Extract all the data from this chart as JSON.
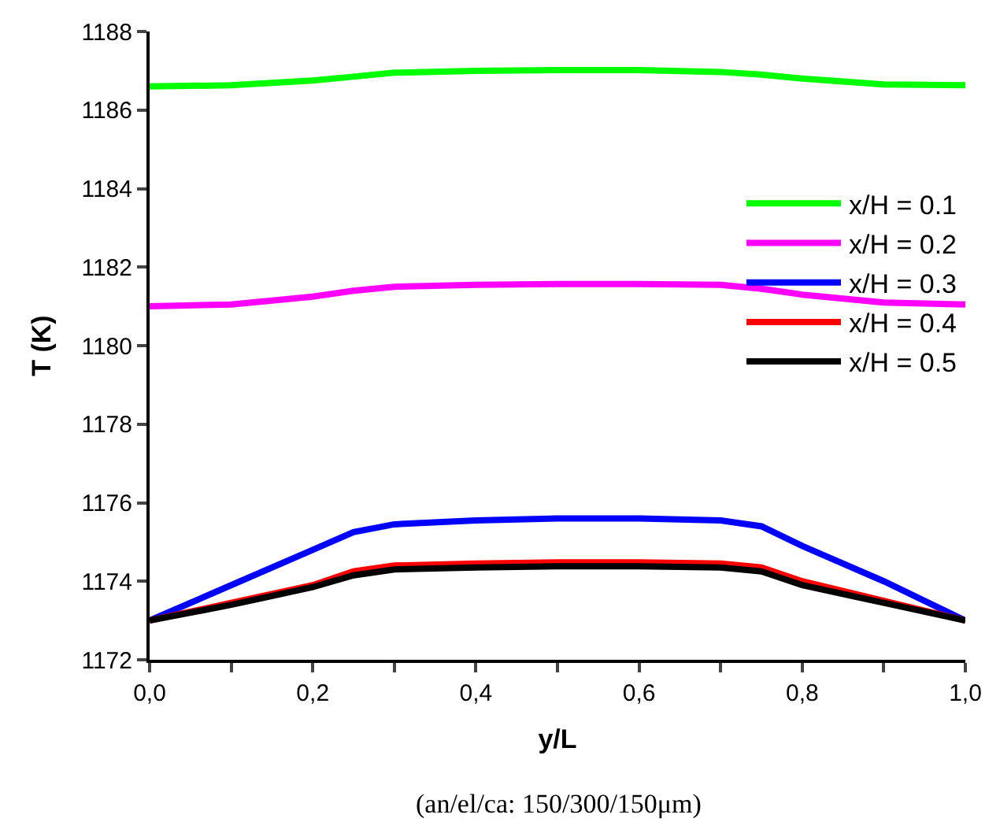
{
  "chart_data": {
    "type": "line",
    "xlabel": "y/L",
    "ylabel": "T (K)",
    "annotations": [
      "(an/el/ca: 150/300/150μm)"
    ],
    "x": [
      0,
      0.1,
      0.2,
      0.25,
      0.3,
      0.4,
      0.5,
      0.6,
      0.7,
      0.75,
      0.8,
      0.9,
      1.0
    ],
    "series": [
      {
        "name": "x/H = 0.1",
        "color": "#00ff00",
        "values": [
          1186.6,
          1186.63,
          1186.75,
          1186.85,
          1186.95,
          1187.0,
          1187.02,
          1187.02,
          1186.97,
          1186.9,
          1186.8,
          1186.65,
          1186.63
        ]
      },
      {
        "name": "x/H = 0.2",
        "color": "#ff00ff",
        "values": [
          1181.0,
          1181.05,
          1181.25,
          1181.4,
          1181.5,
          1181.55,
          1181.57,
          1181.57,
          1181.55,
          1181.45,
          1181.3,
          1181.1,
          1181.05
        ]
      },
      {
        "name": "x/H = 0.3",
        "color": "#0000ff",
        "values": [
          1173.0,
          1173.9,
          1174.8,
          1175.25,
          1175.45,
          1175.55,
          1175.6,
          1175.6,
          1175.55,
          1175.4,
          1174.9,
          1174.0,
          1173.0
        ]
      },
      {
        "name": "x/H = 0.4",
        "color": "#ff0000",
        "values": [
          1173.0,
          1173.45,
          1173.9,
          1174.25,
          1174.4,
          1174.45,
          1174.48,
          1174.48,
          1174.45,
          1174.35,
          1174.0,
          1173.5,
          1173.0
        ]
      },
      {
        "name": "x/H = 0.5",
        "color": "#000000",
        "values": [
          1173.0,
          1173.4,
          1173.85,
          1174.15,
          1174.3,
          1174.35,
          1174.38,
          1174.38,
          1174.35,
          1174.25,
          1173.9,
          1173.45,
          1173.0
        ]
      }
    ],
    "xlim": [
      0,
      1
    ],
    "ylim": [
      1172,
      1188
    ],
    "xticks": [
      {
        "value": 0,
        "label": "0,0"
      },
      {
        "value": 0.1,
        "label": null
      },
      {
        "value": 0.2,
        "label": "0,2"
      },
      {
        "value": 0.3,
        "label": null
      },
      {
        "value": 0.4,
        "label": "0,4"
      },
      {
        "value": 0.5,
        "label": null
      },
      {
        "value": 0.6,
        "label": "0,6"
      },
      {
        "value": 0.7,
        "label": null
      },
      {
        "value": 0.8,
        "label": "0,8"
      },
      {
        "value": 0.9,
        "label": null
      },
      {
        "value": 1.0,
        "label": "1,0"
      }
    ],
    "yticks": [
      1172,
      1174,
      1176,
      1178,
      1180,
      1182,
      1184,
      1186,
      1188
    ],
    "legend": "right",
    "marker": "none",
    "line_style": "solid"
  }
}
